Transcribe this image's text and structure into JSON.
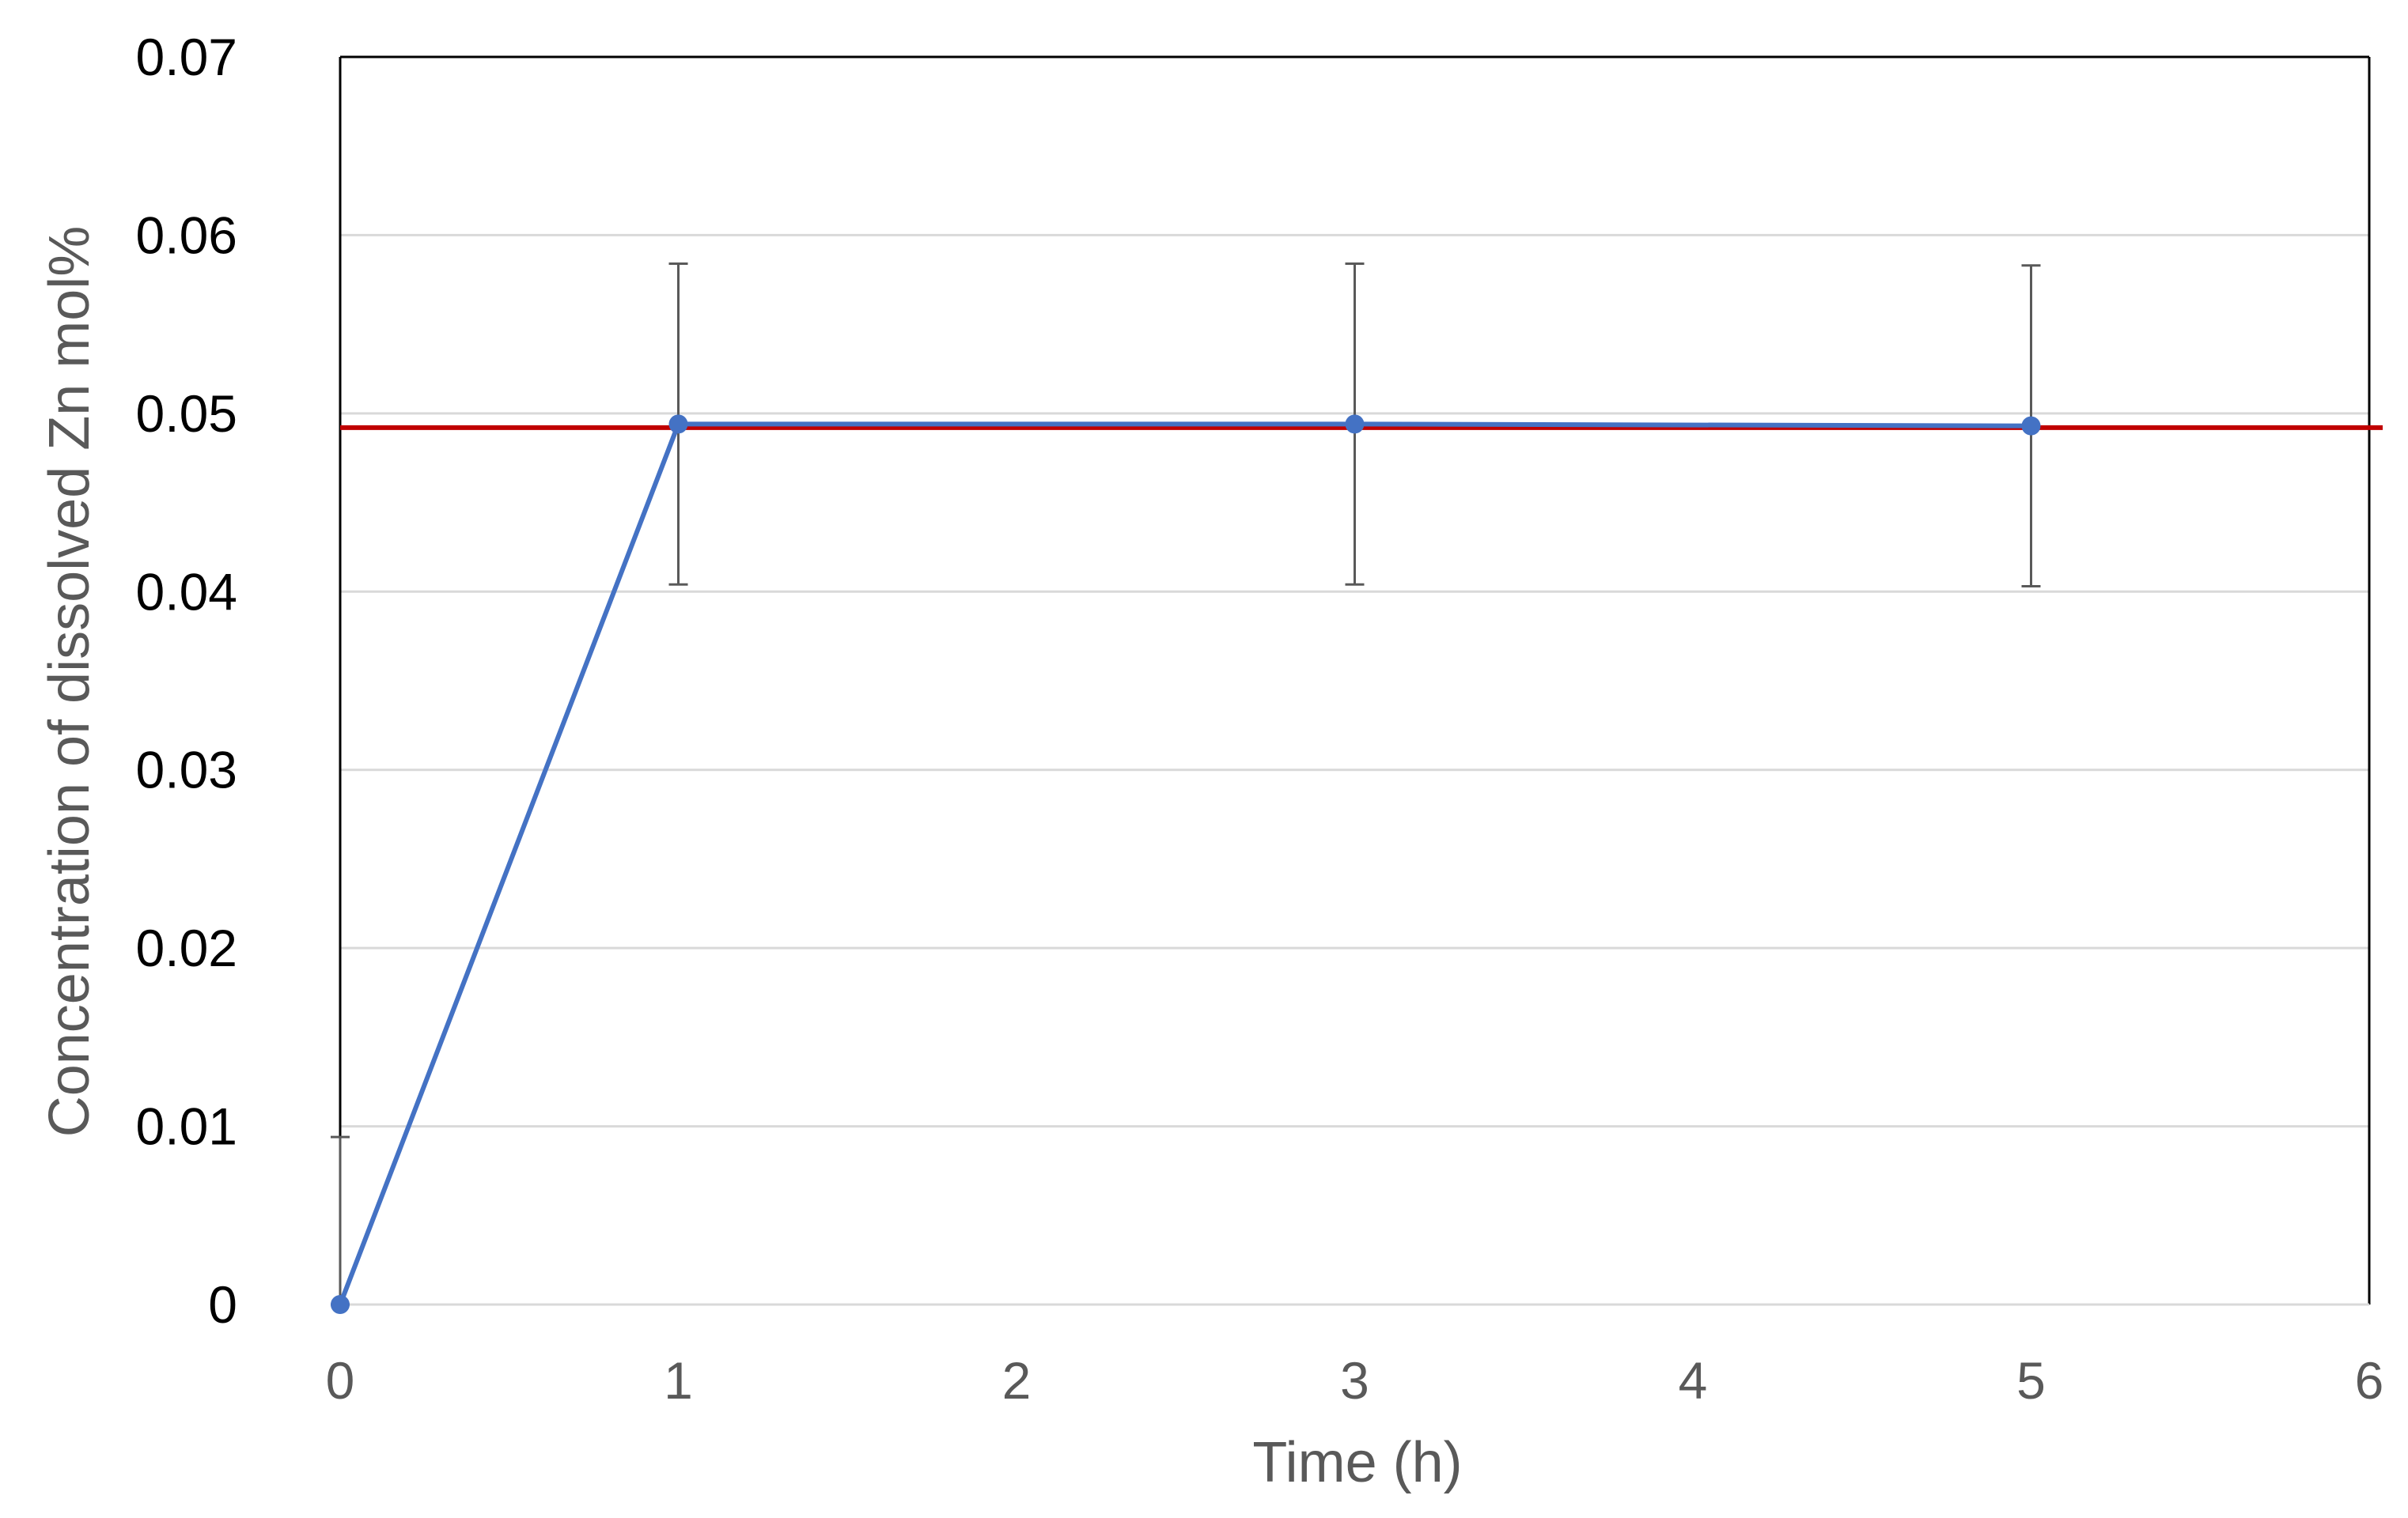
{
  "chart_data": {
    "type": "line",
    "title": "",
    "xlabel": "Time (h)",
    "ylabel": "Concentration of dissolved  Zn mol%",
    "xlim": [
      0,
      6
    ],
    "ylim": [
      0,
      0.07
    ],
    "x_ticks": [
      0,
      1,
      2,
      3,
      4,
      5,
      6
    ],
    "x_tick_labels": [
      "0",
      "1",
      "2",
      "3",
      "4",
      "5",
      "6"
    ],
    "y_ticks": [
      0,
      0.01,
      0.02,
      0.03,
      0.04,
      0.05,
      0.06,
      0.07
    ],
    "y_tick_labels": [
      "0",
      "0.01",
      "0.02",
      "0.03",
      "0.04",
      "0.05",
      "0.06",
      "0.07"
    ],
    "grid": "horizontal",
    "legend": "none",
    "series": [
      {
        "x": [
          0,
          1,
          3,
          5
        ],
        "y": [
          0.0,
          0.0494,
          0.0494,
          0.0493
        ],
        "error_upper": [
          0.0094,
          0.0584,
          0.0584,
          0.0583
        ],
        "error_lower": [
          0.0,
          0.0404,
          0.0404,
          0.0403
        ],
        "color": "#4472C4"
      }
    ],
    "reference_line": {
      "y": 0.0492,
      "color": "#C00000"
    },
    "colors": {
      "grid": "#D9D9D9",
      "frame": "#000000",
      "error_bar": "#595959"
    }
  }
}
